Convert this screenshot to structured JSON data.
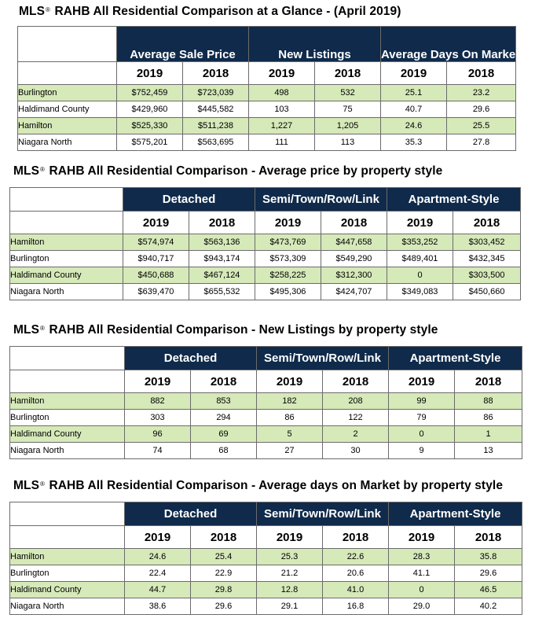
{
  "glance": {
    "title_pre": "MLS",
    "reg": "®",
    "title_post": " RAHB All Residential Comparison at a Glance - (April 2019)",
    "groups": [
      "Average Sale Price",
      "New Listings",
      "Average Days On Market"
    ],
    "years": [
      "2019",
      "2018",
      "2019",
      "2018",
      "2019",
      "2018"
    ],
    "rows": [
      {
        "name": "Burlington",
        "cells": [
          "$752,459",
          "$723,039",
          "498",
          "532",
          "25.1",
          "23.2"
        ]
      },
      {
        "name": "Haldimand County",
        "cells": [
          "$429,960",
          "$445,582",
          "103",
          "75",
          "40.7",
          "29.6"
        ]
      },
      {
        "name": "Hamilton",
        "cells": [
          "$525,330",
          "$511,238",
          "1,227",
          "1,205",
          "24.6",
          "25.5"
        ]
      },
      {
        "name": "Niagara North",
        "cells": [
          "$575,201",
          "$563,695",
          "111",
          "113",
          "35.3",
          "27.8"
        ]
      }
    ]
  },
  "price": {
    "title_pre": "MLS",
    "reg": "®",
    "title_post": " RAHB All Residential Comparison - Average price by property style",
    "groups": [
      "Detached",
      "Semi/Town/Row/Link",
      "Apartment-Style"
    ],
    "years": [
      "2019",
      "2018",
      "2019",
      "2018",
      "2019",
      "2018"
    ],
    "rows": [
      {
        "name": "Hamilton",
        "cells": [
          "$574,974",
          "$563,136",
          "$473,769",
          "$447,658",
          "$353,252",
          "$303,452"
        ]
      },
      {
        "name": "Burlington",
        "cells": [
          "$940,717",
          "$943,174",
          "$573,309",
          "$549,290",
          "$489,401",
          "$432,345"
        ]
      },
      {
        "name": "Haldimand County",
        "cells": [
          "$450,688",
          "$467,124",
          "$258,225",
          "$312,300",
          "0",
          "$303,500"
        ]
      },
      {
        "name": "Niagara North",
        "cells": [
          "$639,470",
          "$655,532",
          "$495,306",
          "$424,707",
          "$349,083",
          "$450,660"
        ]
      }
    ]
  },
  "listings": {
    "title_pre": "MLS",
    "reg": "®",
    "title_post": " RAHB All Residential Comparison - New Listings by property style",
    "groups": [
      "Detached",
      "Semi/Town/Row/Link",
      "Apartment-Style"
    ],
    "years": [
      "2019",
      "2018",
      "2019",
      "2018",
      "2019",
      "2018"
    ],
    "rows": [
      {
        "name": "Hamilton",
        "cells": [
          "882",
          "853",
          "182",
          "208",
          "99",
          "88"
        ]
      },
      {
        "name": "Burlington",
        "cells": [
          "303",
          "294",
          "86",
          "122",
          "79",
          "86"
        ]
      },
      {
        "name": "Haldimand County",
        "cells": [
          "96",
          "69",
          "5",
          "2",
          "0",
          "1"
        ]
      },
      {
        "name": "Niagara North",
        "cells": [
          "74",
          "68",
          "27",
          "30",
          "9",
          "13"
        ]
      }
    ]
  },
  "dom": {
    "title_pre": "MLS",
    "reg": "®",
    "title_post": " RAHB All Residential Comparison - Average days on Market by property style",
    "groups": [
      "Detached",
      "Semi/Town/Row/Link",
      "Apartment-Style"
    ],
    "years": [
      "2019",
      "2018",
      "2019",
      "2018",
      "2019",
      "2018"
    ],
    "rows": [
      {
        "name": "Hamilton",
        "cells": [
          "24.6",
          "25.4",
          "25.3",
          "22.6",
          "28.3",
          "35.8"
        ]
      },
      {
        "name": "Burlington",
        "cells": [
          "22.4",
          "22.9",
          "21.2",
          "20.6",
          "41.1",
          "29.6"
        ]
      },
      {
        "name": "Haldimand County",
        "cells": [
          "44.7",
          "29.8",
          "12.8",
          "41.0",
          "0",
          "46.5"
        ]
      },
      {
        "name": "Niagara North",
        "cells": [
          "38.6",
          "29.6",
          "29.1",
          "16.8",
          "29.0",
          "40.2"
        ]
      }
    ]
  }
}
